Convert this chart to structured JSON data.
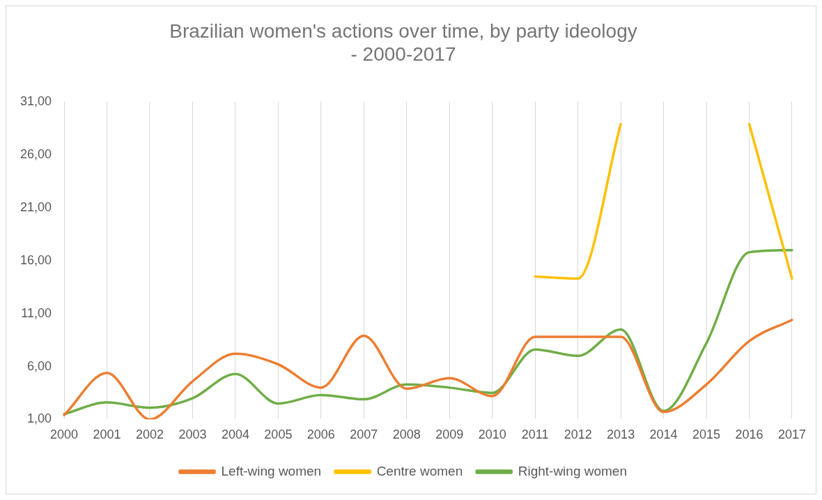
{
  "chart_data": {
    "type": "line",
    "title": "Brazilian women's actions over time, by party ideology - 2000-2017",
    "categories": [
      "2000",
      "2001",
      "2002",
      "2003",
      "2004",
      "2005",
      "2006",
      "2007",
      "2008",
      "2009",
      "2010",
      "2011",
      "2012",
      "2013",
      "2014",
      "2015",
      "2016",
      "2017"
    ],
    "series": [
      {
        "name": "Left-wing women",
        "color": "#ed7d31",
        "values": [
          1.4,
          5.4,
          1.0,
          4.6,
          7.2,
          6.2,
          4.0,
          8.9,
          3.9,
          4.9,
          3.2,
          8.8,
          8.8,
          8.8,
          1.7,
          4.3,
          8.4,
          10.4
        ]
      },
      {
        "name": "Centre women",
        "color": "#ffc000",
        "values": [
          null,
          null,
          null,
          null,
          null,
          null,
          null,
          null,
          null,
          null,
          null,
          14.5,
          14.3,
          28.9,
          null,
          null,
          28.9,
          14.3
        ]
      },
      {
        "name": "Right-wing women",
        "color": "#70ad47",
        "values": [
          1.5,
          2.6,
          2.1,
          3.0,
          5.3,
          2.5,
          3.3,
          2.9,
          4.3,
          4.0,
          3.5,
          7.6,
          7.0,
          9.5,
          1.8,
          8.2,
          16.8,
          17.0
        ]
      }
    ],
    "ylim": [
      1,
      31
    ],
    "yticks": [
      {
        "value": 1,
        "label": "1,00"
      },
      {
        "value": 6,
        "label": "6,00"
      },
      {
        "value": 11,
        "label": "11,00"
      },
      {
        "value": 16,
        "label": "16,00"
      },
      {
        "value": 21,
        "label": "21,00"
      },
      {
        "value": 26,
        "label": "26,00"
      },
      {
        "value": 31,
        "label": "31,00"
      }
    ],
    "grid": "x",
    "legend": "bottom",
    "marker": "none",
    "line_style": "solid"
  }
}
